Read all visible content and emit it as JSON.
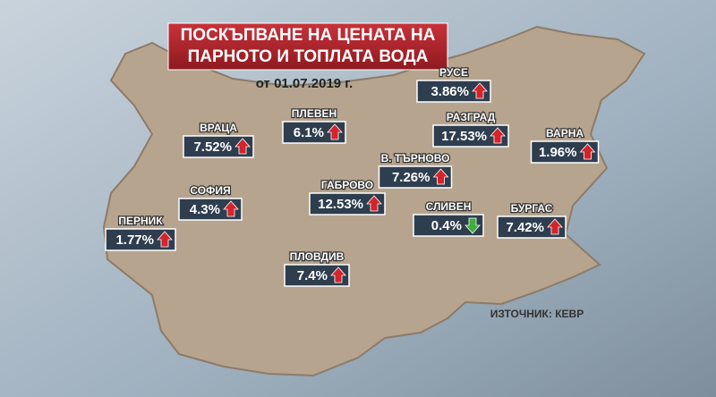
{
  "header": {
    "title_lines": [
      "ПОСКЪПВАНЕ НА ЦЕНАТА НА",
      "ПАРНОТО И ТОПЛАТА ВОДА"
    ],
    "date": "от 01.07.2019 г."
  },
  "cities": [
    {
      "name": "РУСЕ",
      "value": "3.86%",
      "trend": "up"
    },
    {
      "name": "ВРАЦА",
      "value": "7.52%",
      "trend": "up"
    },
    {
      "name": "ПЛЕВЕН",
      "value": "6.1%",
      "trend": "up"
    },
    {
      "name": "РАЗГРАД",
      "value": "17.53%",
      "trend": "up"
    },
    {
      "name": "ВАРНА",
      "value": "1.96%",
      "trend": "up"
    },
    {
      "name": "В. ТЪРНОВО",
      "value": "7.26%",
      "trend": "up"
    },
    {
      "name": "СОФИЯ",
      "value": "4.3%",
      "trend": "up"
    },
    {
      "name": "ГАБРОВО",
      "value": "12.53%",
      "trend": "up"
    },
    {
      "name": "СЛИВЕН",
      "value": "0.4%",
      "trend": "down"
    },
    {
      "name": "БУРГАС",
      "value": "7.42%",
      "trend": "up"
    },
    {
      "name": "ПЕРНИК",
      "value": "1.77%",
      "trend": "up"
    },
    {
      "name": "ПЛОВДИВ",
      "value": "7.4%",
      "trend": "up"
    }
  ],
  "source": "ИЗТОЧНИК: КЕВР"
}
